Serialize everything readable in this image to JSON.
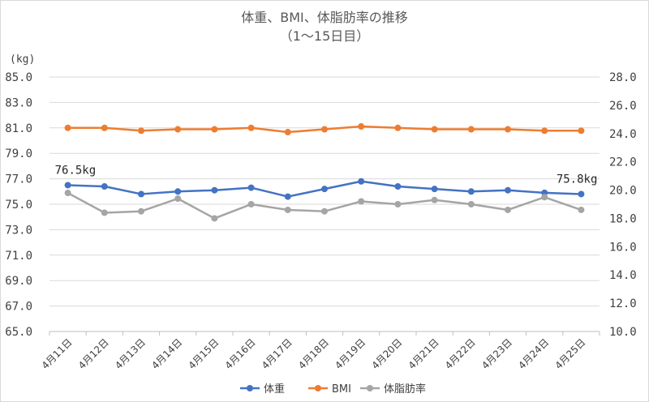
{
  "chart_data": {
    "type": "line",
    "title": "体重、BMI、体脂肪率の推移",
    "subtitle": "（1～15日目）",
    "y_unit": "(kg)",
    "categories": [
      "4月11日",
      "4月12日",
      "4月13日",
      "4月14日",
      "4月15日",
      "4月16日",
      "4月17日",
      "4月18日",
      "4月19日",
      "4月20日",
      "4月21日",
      "4月22日",
      "4月23日",
      "4月24日",
      "4月25日"
    ],
    "y_left": {
      "min": 65.0,
      "max": 85.0,
      "step": 2.0,
      "ticks": [
        "85.0",
        "83.0",
        "81.0",
        "79.0",
        "77.0",
        "75.0",
        "73.0",
        "71.0",
        "69.0",
        "67.0",
        "65.0"
      ]
    },
    "y_right": {
      "min": 10.0,
      "max": 28.0,
      "step": 2.0,
      "ticks": [
        "28.0",
        "26.0",
        "24.0",
        "22.0",
        "20.0",
        "18.0",
        "16.0",
        "14.0",
        "12.0",
        "10.0"
      ]
    },
    "grid": true,
    "legend_position": "bottom",
    "series": [
      {
        "name": "体重",
        "axis": "left",
        "color": "#4472c4",
        "values": [
          76.5,
          76.4,
          75.8,
          76.0,
          76.1,
          76.3,
          75.6,
          76.2,
          76.8,
          76.4,
          76.2,
          76.0,
          76.1,
          75.9,
          75.8
        ]
      },
      {
        "name": "BMI",
        "axis": "right",
        "color": "#ed7d31",
        "values": [
          24.4,
          24.4,
          24.2,
          24.3,
          24.3,
          24.4,
          24.1,
          24.3,
          24.5,
          24.4,
          24.3,
          24.3,
          24.3,
          24.2,
          24.2
        ]
      },
      {
        "name": "体脂肪率",
        "axis": "right",
        "color": "#a5a5a5",
        "values": [
          19.8,
          18.4,
          18.5,
          19.4,
          18.0,
          19.0,
          18.6,
          18.5,
          19.2,
          19.0,
          19.3,
          19.0,
          18.6,
          19.5,
          18.6
        ]
      }
    ],
    "data_labels": [
      {
        "series": 0,
        "index": 0,
        "text": "76.5kg"
      },
      {
        "series": 0,
        "index": 14,
        "text": "75.8kg"
      }
    ]
  }
}
